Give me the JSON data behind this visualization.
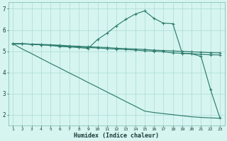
{
  "x": [
    1,
    2,
    3,
    4,
    5,
    6,
    7,
    8,
    9,
    10,
    11,
    12,
    13,
    14,
    15,
    16,
    17,
    18,
    19,
    20,
    21,
    22,
    23
  ],
  "line_flat1": [
    5.35,
    5.35,
    5.33,
    5.32,
    5.3,
    5.28,
    5.25,
    5.23,
    5.21,
    5.19,
    5.17,
    5.14,
    5.12,
    5.1,
    5.08,
    5.05,
    5.03,
    5.01,
    4.99,
    4.97,
    4.95,
    4.93,
    4.92
  ],
  "line_flat2": [
    5.35,
    5.34,
    5.32,
    5.3,
    5.28,
    5.25,
    5.22,
    5.2,
    5.17,
    5.15,
    5.12,
    5.1,
    5.08,
    5.05,
    5.02,
    5.0,
    4.97,
    4.92,
    4.9,
    4.88,
    4.85,
    4.83,
    4.82
  ],
  "line_peak": [
    5.35,
    5.35,
    5.33,
    5.3,
    5.27,
    5.22,
    5.2,
    5.17,
    5.13,
    5.55,
    5.85,
    6.2,
    6.5,
    6.75,
    6.9,
    6.55,
    6.32,
    6.3,
    4.9,
    4.88,
    4.75,
    3.2,
    1.85
  ],
  "line_diag": [
    5.35,
    5.1,
    4.88,
    4.65,
    4.42,
    4.2,
    3.97,
    3.75,
    3.52,
    3.3,
    3.07,
    2.85,
    2.62,
    2.4,
    2.17,
    2.1,
    2.05,
    2.0,
    1.95,
    1.9,
    1.87,
    1.85,
    1.83
  ],
  "color": "#2e7d6e",
  "bg_color": "#d6f5f0",
  "grid_color": "#aadad4",
  "xlabel": "Humidex (Indice chaleur)",
  "ylim": [
    1.5,
    7.3
  ],
  "xlim": [
    0.5,
    23.5
  ],
  "yticks": [
    2,
    3,
    4,
    5,
    6,
    7
  ],
  "xticks": [
    1,
    2,
    3,
    4,
    5,
    6,
    7,
    8,
    9,
    10,
    11,
    12,
    13,
    14,
    15,
    16,
    17,
    18,
    19,
    20,
    21,
    22,
    23
  ]
}
